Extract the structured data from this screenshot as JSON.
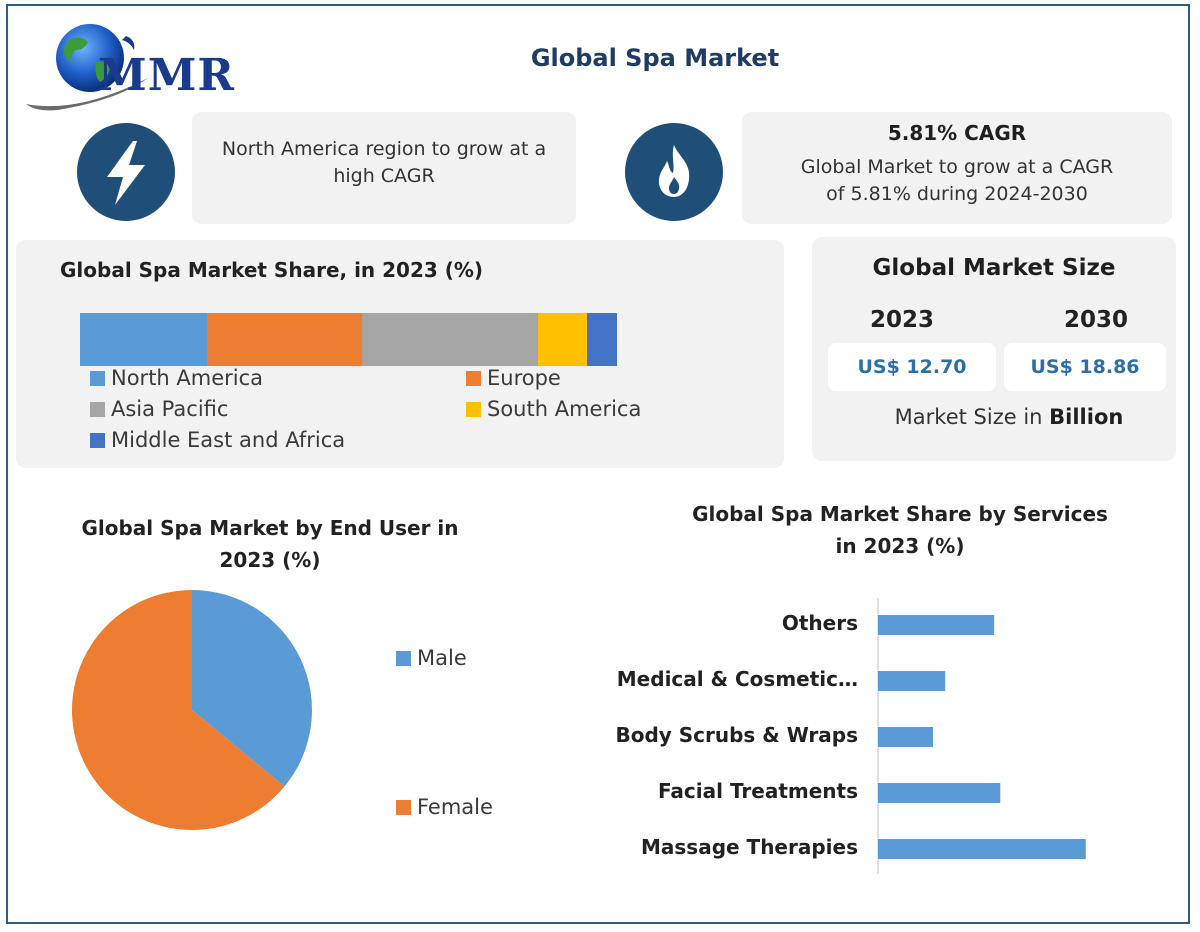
{
  "header": {
    "logo_text": "MMR",
    "title": "Global Spa Market"
  },
  "highlights": [
    {
      "icon": "lightning-icon",
      "text": "North America region to grow at a high CAGR"
    },
    {
      "icon": "flame-icon",
      "title": "5.81% CAGR",
      "text": "Global Market to grow at a CAGR of 5.81% during 2024-2030"
    }
  ],
  "market_size": {
    "title": "Global Market Size",
    "years": [
      {
        "year": "2023",
        "value": "US$ 12.70"
      },
      {
        "year": "2030",
        "value": "US$ 18.86"
      }
    ],
    "note_prefix": "Market Size in ",
    "note_unit": "Billion"
  },
  "colors": {
    "north_america": "#5b9bd5",
    "europe": "#ed7d31",
    "asia_pacific": "#a5a5a5",
    "south_america": "#ffc000",
    "mea": "#4472c4",
    "bars": "#5b9bd5",
    "accent": "#1f4e79"
  },
  "chart_data": [
    {
      "type": "bar",
      "stacked": true,
      "orientation": "horizontal",
      "title": "Global Spa Market Share, in 2023 (%)",
      "series": [
        {
          "name": "North America",
          "values": [
            23.6
          ]
        },
        {
          "name": "Europe",
          "values": [
            28.9
          ]
        },
        {
          "name": "Asia Pacific",
          "values": [
            32.8
          ]
        },
        {
          "name": "South America",
          "values": [
            9.1
          ]
        },
        {
          "name": "Middle East and Africa",
          "values": [
            5.6
          ]
        }
      ],
      "legend": "bottom"
    },
    {
      "type": "pie",
      "title": "Global Spa Market by End User in 2023 (%)",
      "categories": [
        "Male",
        "Female"
      ],
      "values": [
        36,
        64
      ],
      "legend": "right"
    },
    {
      "type": "bar",
      "orientation": "horizontal",
      "title": "Global Spa Market Share by Services in 2023 (%)",
      "categories": [
        "Others",
        "Medical & Cosmetic…",
        "Body Scrubs & Wraps",
        "Facial Treatments",
        "Massage Therapies"
      ],
      "values": [
        19,
        11,
        9,
        20,
        34
      ],
      "xlim": [
        0,
        36
      ]
    }
  ]
}
